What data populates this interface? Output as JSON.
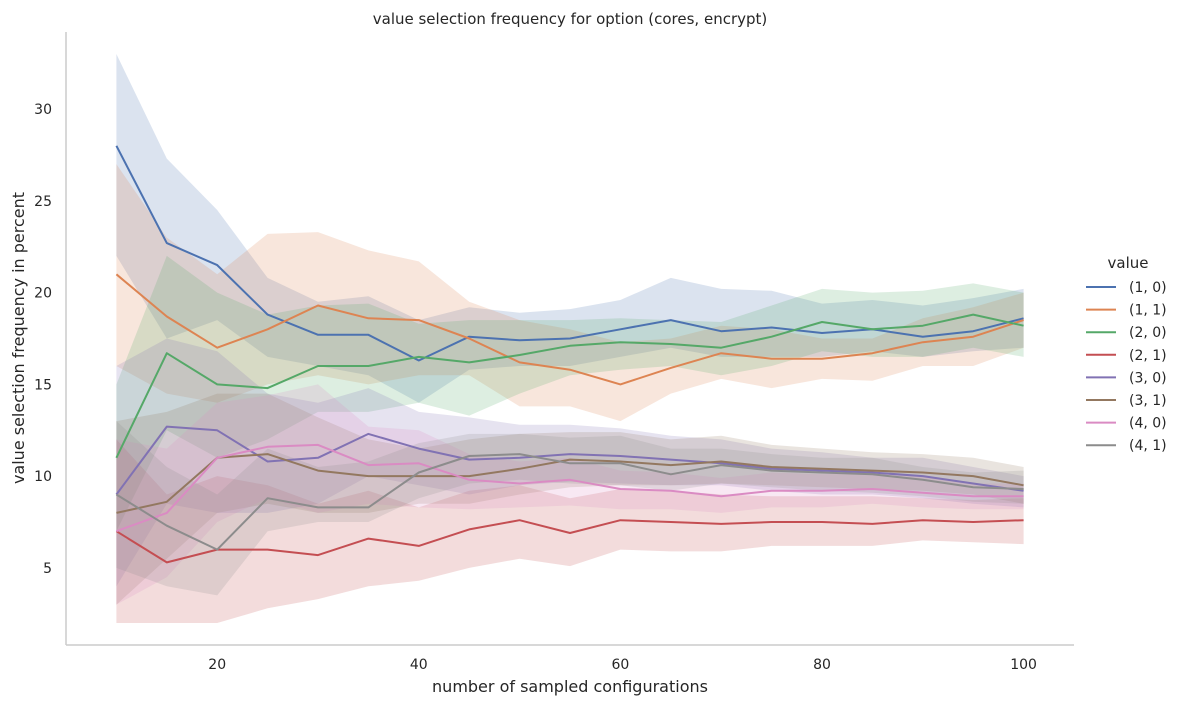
{
  "chart_data": {
    "type": "line",
    "title": "value selection frequency for option (cores, encrypt)",
    "xlabel": "number of sampled configurations",
    "ylabel": "value selection frequency in percent",
    "xlim": [
      5,
      105
    ],
    "ylim": [
      0.8,
      34.2
    ],
    "xticks": [
      20,
      40,
      60,
      80,
      100
    ],
    "yticks": [
      5,
      10,
      15,
      20,
      25,
      30
    ],
    "grid": false,
    "legend": {
      "title": "value",
      "placement": "right"
    },
    "x": [
      10,
      15,
      20,
      25,
      30,
      35,
      40,
      45,
      50,
      55,
      60,
      65,
      70,
      75,
      80,
      85,
      90,
      95,
      100
    ],
    "series": [
      {
        "name": "(1, 0)",
        "color": "#4c72b0",
        "values": [
          28.0,
          22.7,
          21.5,
          18.8,
          17.7,
          17.7,
          16.3,
          17.6,
          17.4,
          17.5,
          18.0,
          18.5,
          17.9,
          18.1,
          17.8,
          18.0,
          17.6,
          17.9,
          18.6
        ],
        "ci_low": [
          22.0,
          17.5,
          18.5,
          16.5,
          16.0,
          15.5,
          14.0,
          15.8,
          16.0,
          16.0,
          16.5,
          17.0,
          16.5,
          16.5,
          16.5,
          16.8,
          16.5,
          16.8,
          17.0
        ],
        "ci_high": [
          33.0,
          27.3,
          24.5,
          20.8,
          19.5,
          19.8,
          18.5,
          19.2,
          18.9,
          19.1,
          19.6,
          20.8,
          20.2,
          20.1,
          19.4,
          19.6,
          19.3,
          19.7,
          20.2
        ]
      },
      {
        "name": "(1, 1)",
        "color": "#dd8452",
        "values": [
          21.0,
          18.7,
          17.0,
          18.0,
          19.3,
          18.6,
          18.5,
          17.5,
          16.2,
          15.8,
          15.0,
          15.9,
          16.7,
          16.4,
          16.4,
          16.7,
          17.3,
          17.6,
          18.5
        ],
        "ci_low": [
          16.0,
          14.5,
          14.0,
          15.0,
          15.5,
          15.0,
          15.5,
          15.5,
          13.8,
          13.8,
          13.0,
          14.5,
          15.3,
          14.8,
          15.3,
          15.2,
          16.0,
          16.0,
          17.0
        ],
        "ci_high": [
          27.0,
          23.0,
          21.0,
          23.2,
          23.3,
          22.3,
          21.7,
          19.5,
          18.5,
          18.0,
          17.3,
          17.5,
          18.2,
          18.0,
          17.5,
          17.5,
          18.6,
          19.2,
          20.0
        ]
      },
      {
        "name": "(2, 0)",
        "color": "#55a868",
        "values": [
          11.0,
          16.7,
          15.0,
          14.8,
          16.0,
          16.0,
          16.5,
          16.2,
          16.6,
          17.1,
          17.3,
          17.2,
          17.0,
          17.6,
          18.4,
          18.0,
          18.2,
          18.8,
          18.2
        ],
        "ci_low": [
          7.0,
          12.5,
          11.0,
          12.0,
          13.5,
          13.5,
          14.0,
          13.3,
          14.5,
          15.5,
          15.8,
          16.0,
          15.5,
          16.0,
          16.8,
          16.5,
          16.5,
          17.0,
          16.5
        ],
        "ci_high": [
          15.0,
          22.0,
          20.0,
          18.8,
          19.3,
          19.4,
          18.3,
          18.5,
          18.5,
          18.5,
          18.6,
          18.5,
          18.4,
          19.3,
          20.2,
          20.0,
          20.1,
          20.5,
          20.0
        ]
      },
      {
        "name": "(2, 1)",
        "color": "#c44e52",
        "values": [
          7.0,
          5.3,
          6.0,
          6.0,
          5.7,
          6.6,
          6.2,
          7.1,
          7.6,
          6.9,
          7.6,
          7.5,
          7.4,
          7.5,
          7.5,
          7.4,
          7.6,
          7.5,
          7.6
        ],
        "ci_low": [
          2.0,
          2.0,
          2.0,
          2.8,
          3.3,
          4.0,
          4.3,
          5.0,
          5.5,
          5.1,
          6.0,
          5.9,
          5.9,
          6.2,
          6.2,
          6.2,
          6.5,
          6.4,
          6.3
        ],
        "ci_high": [
          12.0,
          9.0,
          10.0,
          9.5,
          8.5,
          9.2,
          8.3,
          9.2,
          9.5,
          8.8,
          9.3,
          9.2,
          9.0,
          8.9,
          8.9,
          8.9,
          8.8,
          8.7,
          8.8
        ]
      },
      {
        "name": "(3, 0)",
        "color": "#8172b3",
        "values": [
          9.0,
          12.7,
          12.5,
          10.8,
          11.0,
          12.3,
          11.5,
          10.9,
          11.0,
          11.2,
          11.1,
          10.9,
          10.7,
          10.4,
          10.3,
          10.2,
          10.0,
          9.6,
          9.2
        ],
        "ci_low": [
          4.0,
          8.5,
          8.0,
          8.0,
          8.5,
          10.0,
          9.5,
          9.0,
          9.5,
          9.7,
          9.6,
          9.5,
          9.5,
          9.2,
          9.0,
          9.0,
          8.8,
          8.5,
          8.3
        ],
        "ci_high": [
          16.0,
          17.5,
          16.8,
          14.5,
          14.0,
          14.8,
          13.5,
          13.2,
          12.8,
          12.8,
          12.6,
          12.2,
          12.0,
          11.5,
          11.3,
          11.0,
          11.0,
          10.5,
          10.0
        ]
      },
      {
        "name": "(3, 1)",
        "color": "#937860",
        "values": [
          8.0,
          8.6,
          11.0,
          11.2,
          10.3,
          10.0,
          10.0,
          10.0,
          10.4,
          10.9,
          10.8,
          10.6,
          10.8,
          10.5,
          10.4,
          10.3,
          10.2,
          10.0,
          9.5
        ],
        "ci_low": [
          3.0,
          5.5,
          8.0,
          8.5,
          8.0,
          8.0,
          8.5,
          8.5,
          9.0,
          9.4,
          9.5,
          9.5,
          9.6,
          9.5,
          9.4,
          9.3,
          9.2,
          9.0,
          8.5
        ],
        "ci_high": [
          13.0,
          13.5,
          14.5,
          14.5,
          13.2,
          12.0,
          11.5,
          12.0,
          12.3,
          12.4,
          12.4,
          12.0,
          12.2,
          11.7,
          11.5,
          11.3,
          11.2,
          11.0,
          10.5
        ]
      },
      {
        "name": "(4, 0)",
        "color": "#da8bc3",
        "values": [
          7.0,
          8.0,
          11.0,
          11.6,
          11.7,
          10.6,
          10.7,
          9.8,
          9.6,
          9.8,
          9.3,
          9.2,
          8.9,
          9.2,
          9.2,
          9.3,
          9.1,
          8.9,
          8.9
        ],
        "ci_low": [
          3.0,
          4.5,
          7.5,
          8.8,
          8.0,
          8.5,
          8.3,
          8.2,
          8.3,
          8.4,
          8.2,
          8.2,
          8.0,
          8.3,
          8.3,
          8.5,
          8.3,
          8.2,
          8.2
        ],
        "ci_high": [
          12.0,
          11.5,
          14.0,
          14.4,
          15.0,
          12.7,
          12.5,
          11.2,
          10.8,
          11.0,
          10.3,
          10.2,
          9.9,
          10.2,
          10.1,
          10.2,
          10.0,
          9.6,
          9.6
        ]
      },
      {
        "name": "(4, 1)",
        "color": "#8c8c8c",
        "values": [
          9.0,
          7.3,
          6.0,
          8.8,
          8.3,
          8.3,
          10.2,
          11.1,
          11.2,
          10.7,
          10.7,
          10.1,
          10.6,
          10.3,
          10.2,
          10.1,
          9.8,
          9.4,
          9.3
        ],
        "ci_low": [
          5.0,
          4.0,
          3.5,
          7.0,
          7.5,
          7.5,
          8.8,
          9.6,
          9.8,
          9.6,
          9.5,
          9.2,
          9.6,
          9.4,
          9.2,
          9.1,
          8.9,
          8.6,
          8.5
        ],
        "ci_high": [
          13.0,
          10.5,
          9.0,
          11.5,
          10.5,
          10.8,
          11.8,
          12.3,
          12.3,
          12.1,
          12.2,
          11.5,
          11.5,
          11.2,
          11.0,
          11.0,
          10.5,
          10.2,
          10.3
        ]
      }
    ]
  }
}
